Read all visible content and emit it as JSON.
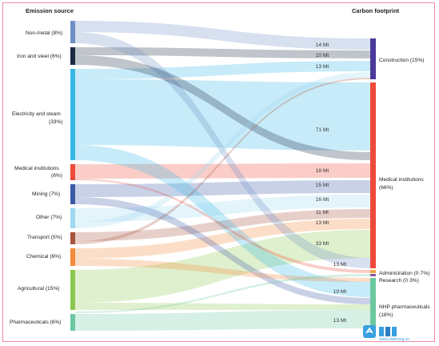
{
  "headers": {
    "source": "Emission source",
    "target": "Carbon footprint"
  },
  "sources": [
    {
      "id": "nonmetal",
      "line1": "Non-metal (8%)",
      "line2": "",
      "color": "#6f8fc4"
    },
    {
      "id": "iron",
      "line1": "Iron and steel (6%)",
      "line2": "",
      "color": "#1c2a44"
    },
    {
      "id": "electricity",
      "line1": "Electricity and steam",
      "line2": "(33%)",
      "color": "#35b8e6"
    },
    {
      "id": "medinst",
      "line1": "Medical institutions",
      "line2": "(6%)",
      "color": "#ee4a3a"
    },
    {
      "id": "mining",
      "line1": "Mining (7%)",
      "line2": "",
      "color": "#3d5aa8"
    },
    {
      "id": "other",
      "line1": "Other (7%)",
      "line2": "",
      "color": "#9ed8f2"
    },
    {
      "id": "transport",
      "line1": "Transport (5%)",
      "line2": "",
      "color": "#a8543c"
    },
    {
      "id": "chemical",
      "line1": "Chemical (6%)",
      "line2": "",
      "color": "#f48a3a"
    },
    {
      "id": "agricultural",
      "line1": "Agricultural (15%)",
      "line2": "",
      "color": "#8cc850"
    },
    {
      "id": "pharma",
      "line1": "Pharmaceuticals (6%)",
      "line2": "",
      "color": "#6cc8a0"
    }
  ],
  "targets": [
    {
      "id": "construction",
      "line1": "Construction (15%)",
      "line2": "",
      "color": "#4a3a9a"
    },
    {
      "id": "medical",
      "line1": "Medical institutions",
      "line2": "(66%)",
      "color": "#ee4a3a"
    },
    {
      "id": "admin",
      "line1": "Administration (0·7%)",
      "line2": "",
      "color": "#f4a640"
    },
    {
      "id": "research",
      "line1": "Research (0·3%)",
      "line2": "",
      "color": "#8a5a9a"
    },
    {
      "id": "nhp",
      "line1": "NHP pharmaceuticals",
      "line2": "(18%)",
      "color": "#6cc8a0"
    }
  ],
  "flow_labels": [
    "14 Mt",
    "10 Mt",
    "13 Mt",
    "71 Mt",
    "18 Mt",
    "15 Mt",
    "16 Mt",
    "11 Mt",
    "13 Mt",
    "33 Mt",
    "13 Mt",
    "19 Mt",
    "13 Mt"
  ],
  "watermark": "www.elanrong.cn"
}
